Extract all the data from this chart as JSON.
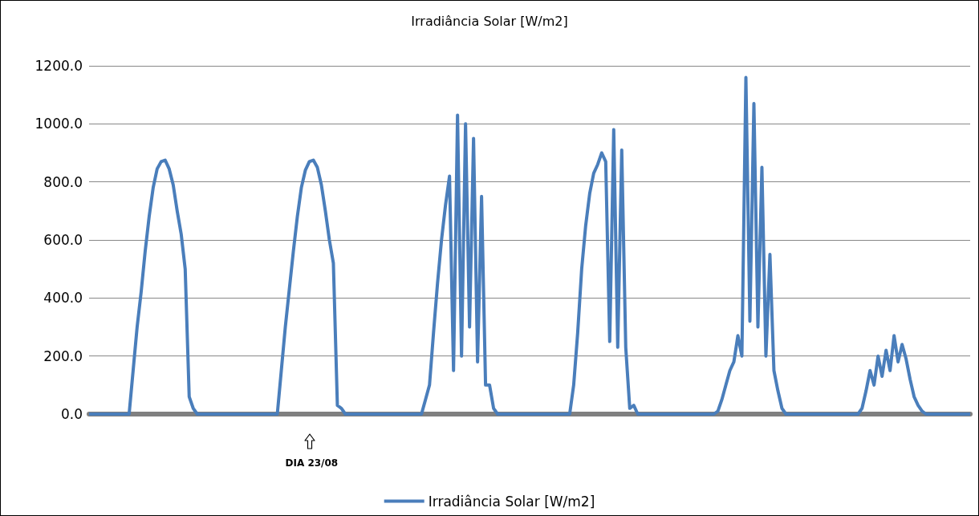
{
  "chart_data": {
    "type": "line",
    "title": "Irradiância Solar [W/m2]",
    "annotations": [
      "DIA 23/08"
    ],
    "categories": [
      null,
      null,
      null,
      null,
      null,
      null,
      null,
      null,
      null,
      null,
      null,
      null,
      null,
      null,
      null,
      null,
      null,
      null,
      null,
      null,
      null,
      null,
      null,
      null,
      null,
      null,
      null,
      null,
      null,
      null,
      null,
      null,
      null,
      null,
      null,
      null,
      null,
      null,
      null,
      null,
      null,
      null,
      null,
      null,
      null,
      null,
      null,
      null,
      null,
      null,
      null,
      null,
      null,
      null,
      null,
      null,
      null,
      null,
      null,
      null,
      null,
      null,
      null,
      null,
      null,
      null,
      null,
      null,
      null,
      null,
      null,
      null,
      null,
      null,
      null,
      null,
      null,
      null,
      null,
      null,
      null,
      null,
      null,
      null,
      null,
      null,
      null,
      null,
      null,
      null,
      null,
      null,
      null,
      null,
      null,
      null,
      null,
      null,
      null,
      null,
      null,
      null,
      null,
      null,
      null,
      null,
      null,
      null,
      null,
      null,
      null,
      null,
      null,
      null,
      null,
      null,
      null,
      null,
      null,
      null,
      null,
      null,
      null,
      null,
      null,
      null,
      null,
      null,
      null,
      null,
      null,
      null,
      null,
      null,
      null,
      null,
      null,
      null,
      null,
      null,
      null,
      null,
      null,
      null,
      null,
      null,
      null,
      null,
      null,
      null,
      null,
      null,
      null,
      null,
      null,
      null,
      null,
      null,
      null,
      null,
      null,
      null,
      null,
      null,
      null,
      null,
      null,
      null,
      null,
      null,
      null,
      null,
      null,
      null,
      null,
      null,
      null,
      null,
      null,
      null,
      null,
      null,
      null,
      null,
      null,
      null,
      null,
      null,
      null,
      null,
      null,
      null,
      null,
      null,
      null,
      null,
      null,
      null,
      null,
      null,
      null,
      null,
      null,
      null,
      null,
      null,
      null,
      null,
      null,
      null,
      null,
      null,
      null,
      null,
      null,
      null,
      null,
      null,
      null,
      null,
      null
    ],
    "series": [
      {
        "name": "Irradiância Solar [W/m2]",
        "color": "#4a7ebb",
        "values": [
          0,
          0,
          0,
          0,
          0,
          0,
          0,
          0,
          0,
          0,
          0,
          150,
          300,
          420,
          560,
          680,
          780,
          845,
          870,
          875,
          845,
          790,
          700,
          620,
          500,
          60,
          20,
          0,
          0,
          0,
          0,
          0,
          0,
          0,
          0,
          0,
          0,
          0,
          0,
          0,
          0,
          0,
          0,
          0,
          0,
          0,
          0,
          0,
          150,
          300,
          430,
          560,
          680,
          780,
          840,
          870,
          875,
          850,
          790,
          700,
          600,
          520,
          30,
          20,
          0,
          0,
          0,
          0,
          0,
          0,
          0,
          0,
          0,
          0,
          0,
          0,
          0,
          0,
          0,
          0,
          0,
          0,
          0,
          0,
          50,
          100,
          280,
          450,
          600,
          720,
          820,
          150,
          1030,
          200,
          1000,
          300,
          950,
          180,
          750,
          100,
          100,
          20,
          0,
          0,
          0,
          0,
          0,
          0,
          0,
          0,
          0,
          0,
          0,
          0,
          0,
          0,
          0,
          0,
          0,
          0,
          0,
          100,
          280,
          500,
          650,
          760,
          830,
          860,
          900,
          870,
          250,
          980,
          230,
          910,
          230,
          20,
          30,
          0,
          0,
          0,
          0,
          0,
          0,
          0,
          0,
          0,
          0,
          0,
          0,
          0,
          0,
          0,
          0,
          0,
          0,
          0,
          0,
          10,
          50,
          100,
          150,
          180,
          270,
          200,
          1160,
          320,
          1070,
          300,
          850,
          200,
          550,
          150,
          80,
          20,
          0,
          0,
          0,
          0,
          0,
          0,
          0,
          0,
          0,
          0,
          0,
          0,
          0,
          0,
          0,
          0,
          0,
          0,
          0,
          20,
          80,
          150,
          100,
          200,
          130,
          220,
          150,
          270,
          180,
          240,
          190,
          120,
          60,
          30,
          10,
          0,
          0,
          0,
          0,
          0,
          0,
          0,
          0,
          0,
          0,
          0,
          0
        ]
      }
    ],
    "ylim": [
      0,
      1200
    ],
    "yticks": [
      {
        "value": 0,
        "label": "0.0"
      },
      {
        "value": 200,
        "label": "200.0"
      },
      {
        "value": 400,
        "label": "400.0"
      },
      {
        "value": 600,
        "label": "600.0"
      },
      {
        "value": 800,
        "label": "800.0"
      },
      {
        "value": 1000,
        "label": "1000.0"
      },
      {
        "value": 1200,
        "label": "1200.0"
      }
    ],
    "grid": "y",
    "legend": "bottom",
    "marker": "none",
    "line_style": "solid"
  }
}
